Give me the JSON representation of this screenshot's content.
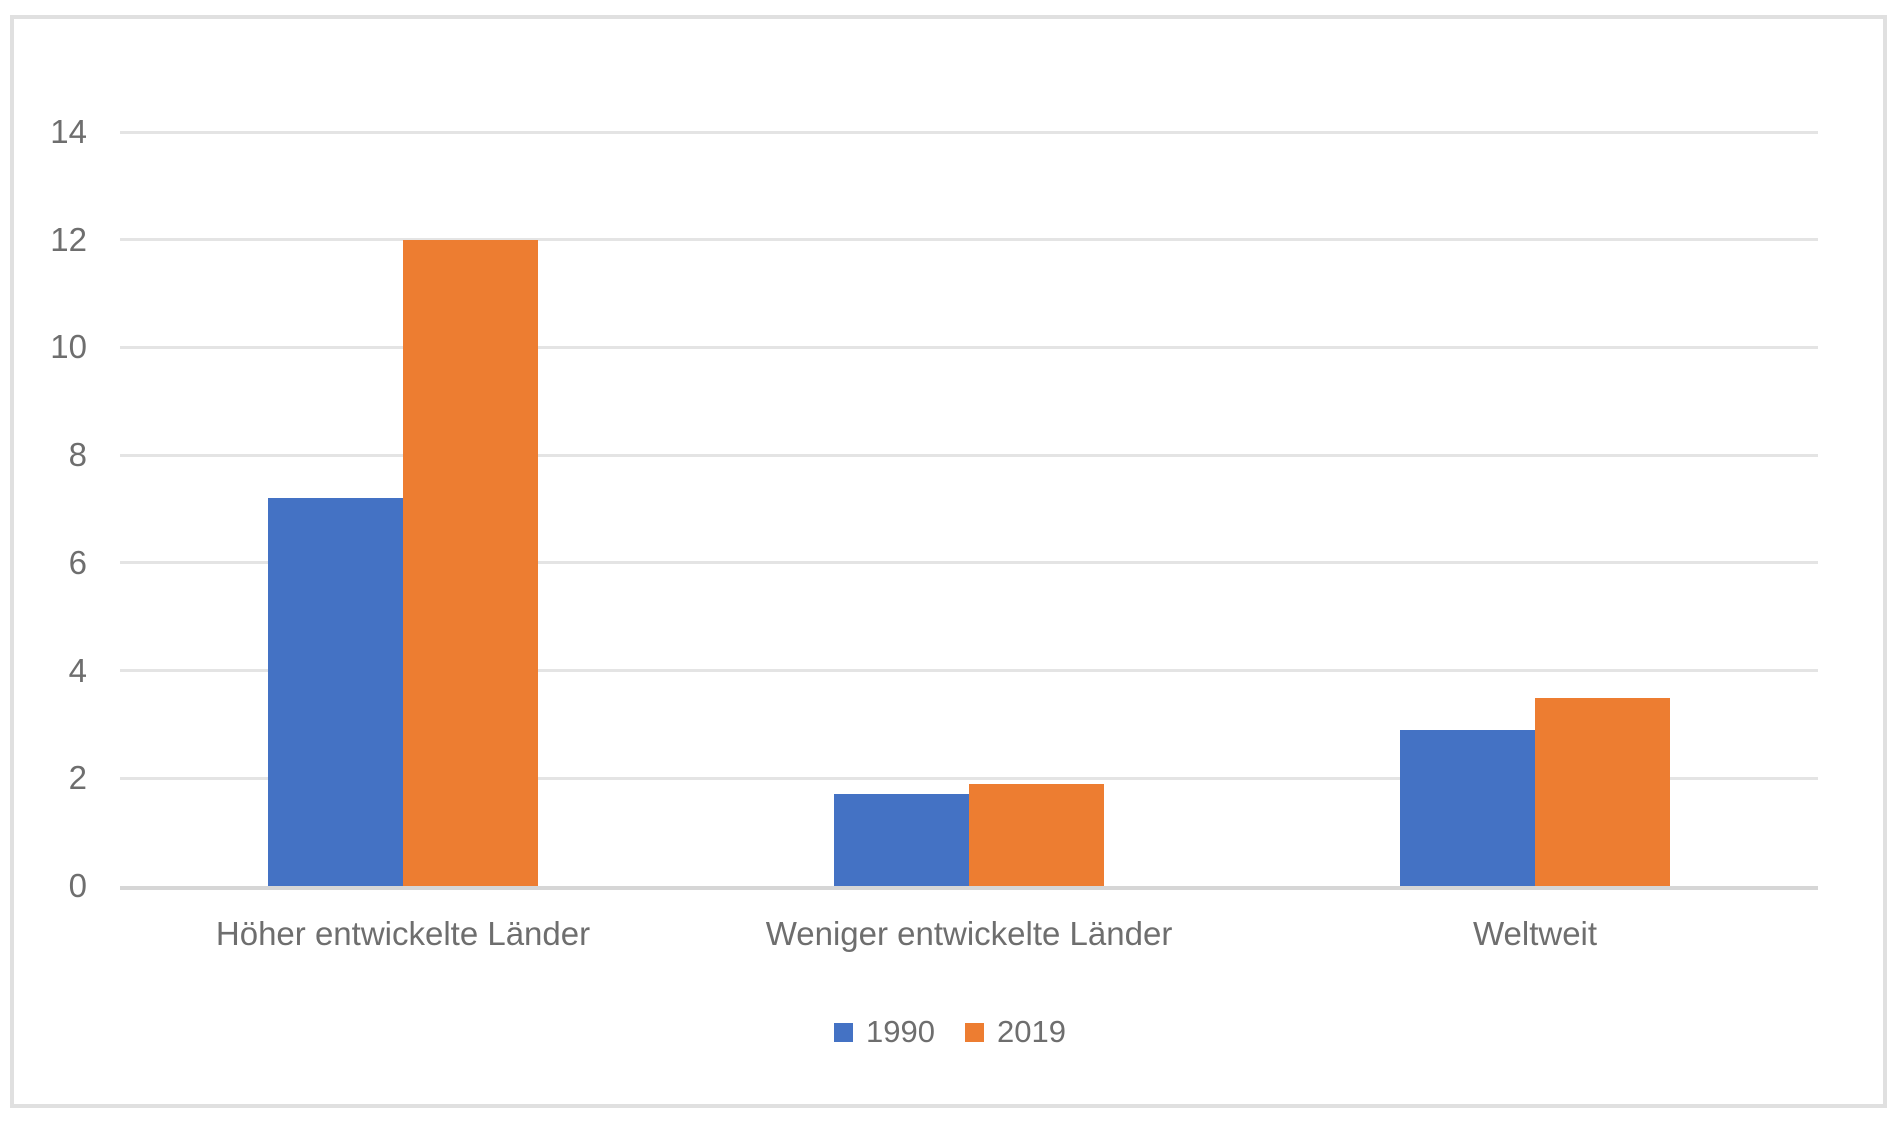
{
  "chart_data": {
    "type": "bar",
    "title": "",
    "xlabel": "",
    "ylabel": "",
    "categories": [
      "Höher entwickelte Länder",
      "Weniger entwickelte Länder",
      "Weltweit"
    ],
    "series": [
      {
        "name": "1990",
        "color": "#4472C4",
        "values": [
          7.2,
          1.7,
          2.9
        ]
      },
      {
        "name": "2019",
        "color": "#ED7D31",
        "values": [
          12,
          1.9,
          3.5
        ]
      }
    ],
    "ylim": [
      0,
      14
    ],
    "yticks": [
      0,
      2,
      4,
      6,
      8,
      10,
      12,
      14
    ],
    "grid": true,
    "legend_position": "bottom"
  },
  "colors": {
    "background": "#FFFFFF",
    "frame_border": "#E0E0E0",
    "gridline": "#E4E4E4",
    "axis_line": "#D6D6D6",
    "text": "#6E6E6E"
  }
}
